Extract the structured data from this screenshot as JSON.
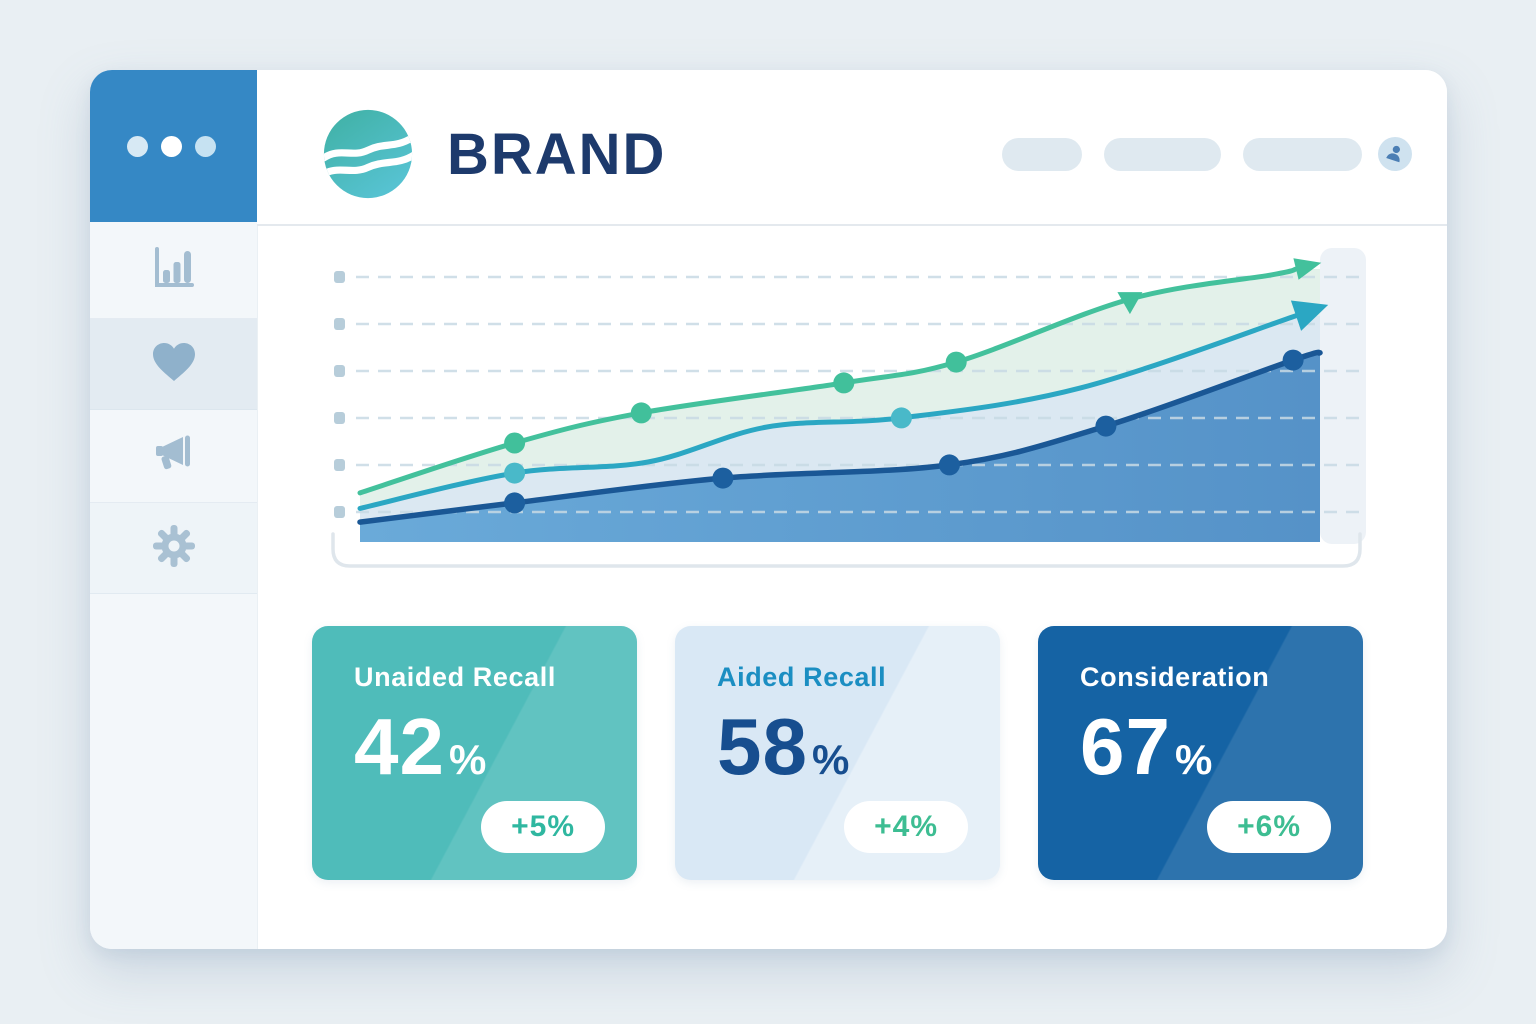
{
  "theme": {
    "page_bg": "#e9eff3",
    "window_bg": "#ffffff",
    "sidebar_bg": "#f3f7fa",
    "sidebar_active_bg": "#e3ebf2",
    "sidebar_top_bg": "#3588c5",
    "menu_dot_colors": [
      "#d7e9f4",
      "#ffffff",
      "#c6e2f2"
    ],
    "icon_color": "#a3bdd1",
    "brand_navy": "#1d3a6c",
    "header_divider": "#e4e9ee",
    "nav_pill_bg": "#dfe9f0",
    "avatar_bg": "#cfe2ef",
    "avatar_glyph": "#4b7eb4",
    "logo_gradient": [
      "#3fb0a3",
      "#57c3d3"
    ]
  },
  "sidebar": {
    "items": [
      {
        "id": "analytics",
        "icon": "bar-chart-icon",
        "active": false
      },
      {
        "id": "brand-health",
        "icon": "heart-icon",
        "active": true
      },
      {
        "id": "campaigns",
        "icon": "megaphone-icon",
        "active": false
      },
      {
        "id": "settings",
        "icon": "gear-icon",
        "active": false
      }
    ]
  },
  "header": {
    "brand_name": "BRAND",
    "logo_icon": "wave-circle-logo",
    "nav_placeholder_count": 3,
    "avatar_icon": "user-icon"
  },
  "chart_data": {
    "type": "area",
    "title": "",
    "x_axis_labels": "none visible",
    "y_axis_labels": "none visible (6 dashed gridlines with square ticks)",
    "gridline_count": 6,
    "legend": "none",
    "grid_color": "#c8dae5",
    "tick_color": "#b7cdda",
    "highlight_band_color": "#edf2f7",
    "tray_outline_color": "#dfe6ec",
    "series": [
      {
        "name": "top-green-trend",
        "line_color": "#43c19c",
        "dot_color": "#41c09b",
        "fill_color": "#e3f1ea",
        "fill_to": "middle-teal-trend",
        "points": [
          [
            0,
            16.8
          ],
          [
            16.1,
            33.9
          ],
          [
            29.3,
            44.2
          ],
          [
            50.4,
            54.5
          ],
          [
            62.1,
            61.6
          ],
          [
            80.2,
            83.2
          ],
          [
            95,
            91.5
          ],
          [
            97.5,
            93.5
          ]
        ],
        "dots": [
          1,
          2,
          3,
          4
        ],
        "marker_triangle_index": 5,
        "arrow_end": true
      },
      {
        "name": "middle-teal-trend",
        "line_color": "#2ba7c3",
        "dot_color": "#49b9c9",
        "fill_color": "#dbe8f2",
        "fill_to": "bottom-navy-trend",
        "points": [
          [
            0,
            11.5
          ],
          [
            16.1,
            23.6
          ],
          [
            30,
            27.4
          ],
          [
            42.4,
            39.4
          ],
          [
            56.4,
            42.5
          ],
          [
            75,
            52.7
          ],
          [
            97.5,
            77.5
          ]
        ],
        "dots": [
          1,
          4
        ],
        "marker_triangle_index": null,
        "arrow_end": true
      },
      {
        "name": "bottom-navy-trend",
        "line_color": "#1a5795",
        "dot_color": "#1c5f9f",
        "fill_color_gradient": [
          "#6aaad9",
          "#5592c8"
        ],
        "fill_to": "baseline",
        "points": [
          [
            0,
            6.8
          ],
          [
            16.1,
            13.4
          ],
          [
            37.8,
            21.9
          ],
          [
            61.4,
            26.4
          ],
          [
            77.7,
            39.7
          ],
          [
            97.2,
            62.3
          ],
          [
            100,
            64.8
          ]
        ],
        "dots": [
          1,
          2,
          3,
          4,
          5
        ],
        "marker_triangle_index": null,
        "arrow_end": false
      }
    ]
  },
  "cards": [
    {
      "label": "Unaided Recall",
      "value": "42",
      "unit": "%",
      "delta": "+5%",
      "background": "#4fbcba",
      "label_color": "#ffffff",
      "value_color": "#ffffff",
      "delta_color": "#2fb7a0"
    },
    {
      "label": "Aided Recall",
      "value": "58",
      "unit": "%",
      "delta": "+4%",
      "background": "#d9e8f5",
      "label_color": "#1b8ec2",
      "value_color": "#174e8f",
      "delta_color": "#3dbd92"
    },
    {
      "label": "Consideration",
      "value": "67",
      "unit": "%",
      "delta": "+6%",
      "background": "#1563a4",
      "label_color": "#ffffff",
      "value_color": "#ffffff",
      "delta_color": "#3dbd92"
    }
  ]
}
